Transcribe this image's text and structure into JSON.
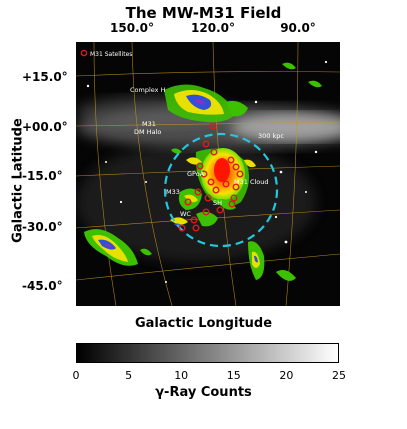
{
  "chart_data": {
    "type": "heatmap",
    "title": "The MW-M31 Field",
    "xlabel": "Galactic Longitude",
    "ylabel": "Galactic Latitude",
    "x_ticks": [
      "150.0°",
      "120.0°",
      "90.0°"
    ],
    "y_ticks": [
      "+15.0°",
      "+00.0°",
      "-15.0°",
      "-30.0°",
      "-45.0°"
    ],
    "legend": {
      "entries": [
        "M31 Satellites"
      ],
      "position": "top-left"
    },
    "annotations": [
      "Complex H",
      "M31",
      "DM Halo",
      "300 kpc",
      "GPoA",
      "M31 Cloud",
      "M33",
      "SH",
      "WC"
    ],
    "colorbar": {
      "label": "γ-Ray Counts",
      "range": [
        0,
        25
      ],
      "ticks": [
        "0",
        "5",
        "10",
        "15",
        "20",
        "25"
      ]
    },
    "grid": true,
    "colors": {
      "halo_circle": "#22c8e0",
      "satellites": "#e01818",
      "grid": "#c8961e"
    }
  }
}
